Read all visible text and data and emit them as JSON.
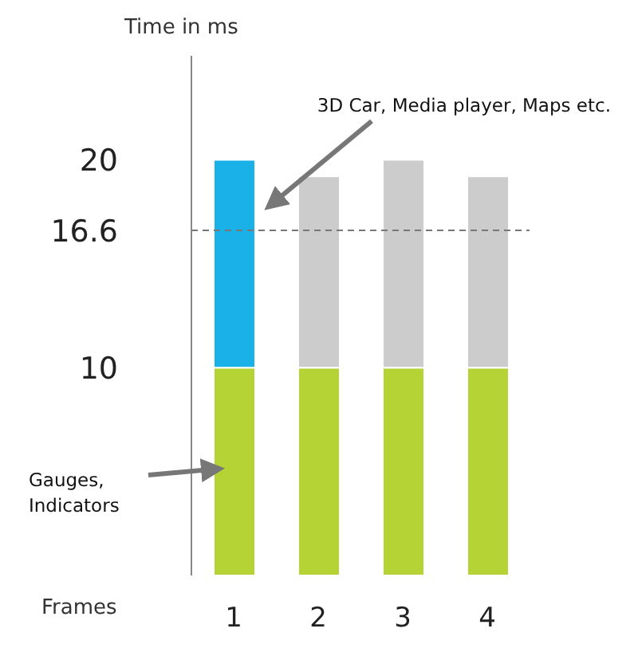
{
  "chart_data": {
    "type": "bar",
    "ylabel": "Time in ms",
    "xlabel": "Frames",
    "categories": [
      "1",
      "2",
      "3",
      "4"
    ],
    "stacked": true,
    "series": [
      {
        "color": "#b5d334",
        "values": [
          10,
          10,
          10,
          10
        ]
      },
      {
        "color": "#cccccc",
        "colors": [
          "#1ab0e8",
          "#cccccc",
          "#cccccc",
          "#cccccc"
        ],
        "values": [
          10,
          9.2,
          10,
          9.2
        ]
      }
    ],
    "ylim": [
      0,
      25
    ],
    "yticks": [
      10,
      16.6,
      20
    ],
    "grid": false,
    "legend": false,
    "ref_lines": [
      {
        "axis": "y",
        "value": 16.6,
        "color": "#777777",
        "line_style": "dashed"
      }
    ],
    "annotations": [
      "3D Car, Media player, Maps etc.",
      "Gauges, Indicators"
    ]
  }
}
